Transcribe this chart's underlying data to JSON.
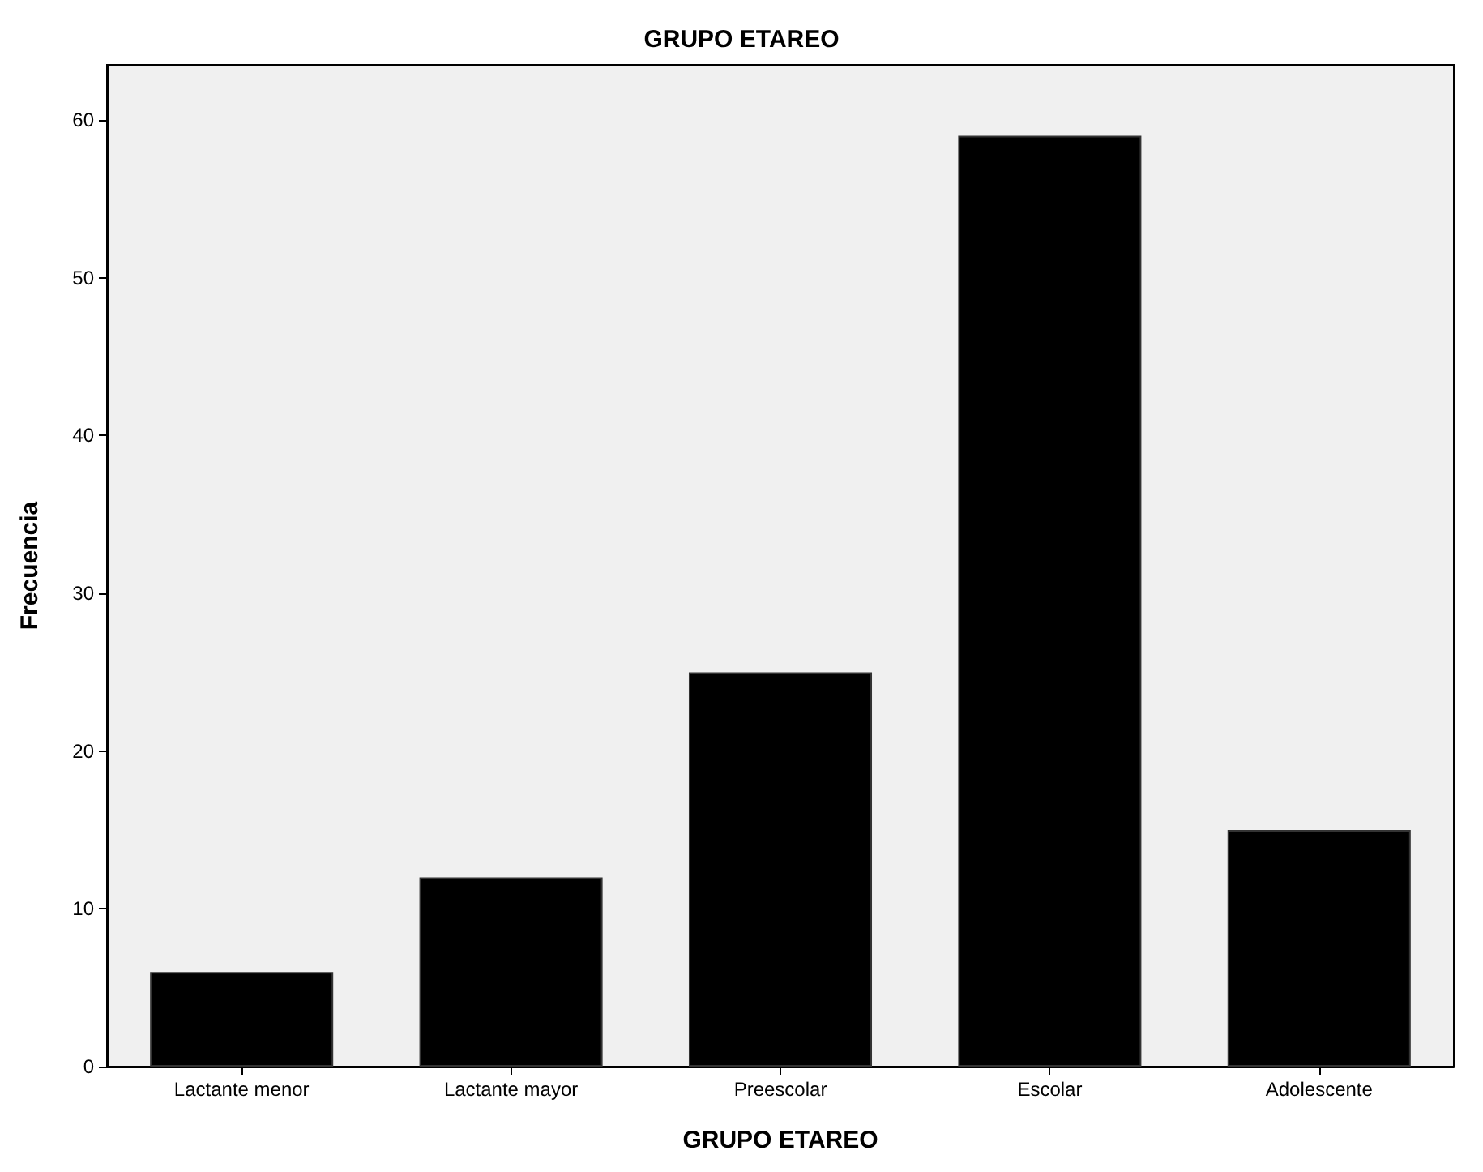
{
  "chart_data": {
    "type": "bar",
    "title": "GRUPO ETAREO",
    "xlabel": "GRUPO ETAREO",
    "ylabel": "Frecuencia",
    "categories": [
      "Lactante menor",
      "Lactante mayor",
      "Preescolar",
      "Escolar",
      "Adolescente"
    ],
    "values": [
      6,
      12,
      25,
      59,
      15
    ],
    "color": "#000000",
    "ylim": [
      0,
      63.5
    ],
    "yticks": [
      0,
      10,
      20,
      30,
      40,
      50,
      60
    ],
    "grid": false
  }
}
